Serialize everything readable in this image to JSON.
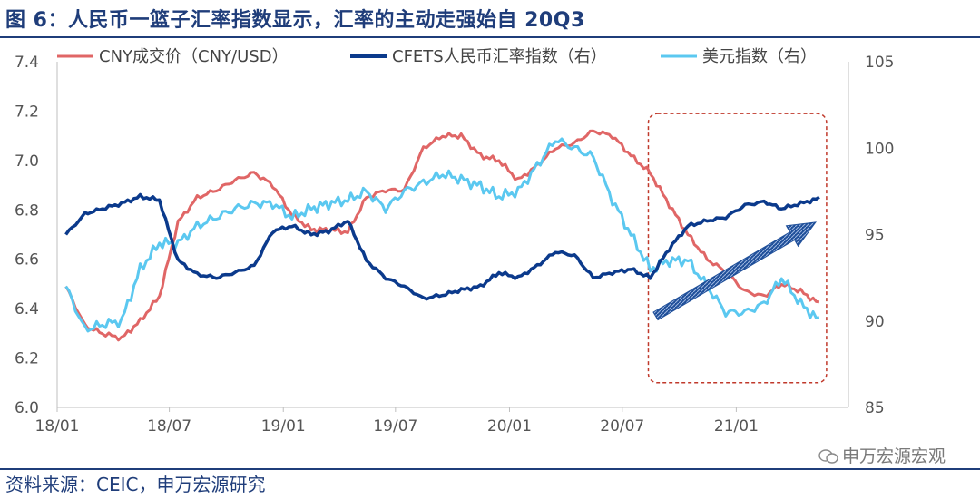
{
  "header": {
    "title": "图 6：人民币一篮子汇率指数显示，汇率的主动走强始自 20Q3"
  },
  "footer": {
    "source": "资料来源：CEIC，申万宏源研究",
    "watermark": "申万宏源宏观"
  },
  "chart_data": {
    "type": "line",
    "title": "",
    "x_tick_labels": [
      "18/01",
      "18/07",
      "19/01",
      "19/07",
      "20/01",
      "20/07",
      "21/01"
    ],
    "y_left": {
      "ticks": [
        "6.0",
        "6.2",
        "6.4",
        "6.6",
        "6.8",
        "7.0",
        "7.2",
        "7.4"
      ],
      "range": [
        6.0,
        7.4
      ]
    },
    "y_right": {
      "ticks": [
        "85",
        "90",
        "95",
        "100",
        "105"
      ],
      "range": [
        85,
        105
      ]
    },
    "grid": false,
    "legend_position": "top",
    "colors": {
      "cny": "#e06666",
      "cfets": "#0b3a8c",
      "usd_index": "#5bc8f0",
      "box": "#c0392b",
      "arrow": "#1f4f99"
    },
    "series": [
      {
        "name": "CNY成交价（CNY/USD）",
        "axis": "left",
        "x": [
          "2018-01",
          "2018-02",
          "2018-03",
          "2018-04",
          "2018-05",
          "2018-06",
          "2018-07",
          "2018-08",
          "2018-09",
          "2018-10",
          "2018-11",
          "2018-12",
          "2019-01",
          "2019-02",
          "2019-03",
          "2019-04",
          "2019-05",
          "2019-06",
          "2019-07",
          "2019-08",
          "2019-09",
          "2019-10",
          "2019-11",
          "2019-12",
          "2020-01",
          "2020-02",
          "2020-03",
          "2020-04",
          "2020-05",
          "2020-06",
          "2020-07",
          "2020-08",
          "2020-09",
          "2020-10",
          "2020-11",
          "2020-12",
          "2021-01",
          "2021-02",
          "2021-03",
          "2021-04",
          "2021-05"
        ],
        "values": [
          6.49,
          6.33,
          6.3,
          6.28,
          6.35,
          6.45,
          6.75,
          6.85,
          6.88,
          6.92,
          6.95,
          6.9,
          6.78,
          6.72,
          6.72,
          6.71,
          6.85,
          6.88,
          6.88,
          7.05,
          7.1,
          7.1,
          7.02,
          7.0,
          6.92,
          6.98,
          7.05,
          7.07,
          7.12,
          7.1,
          7.02,
          6.95,
          6.82,
          6.7,
          6.6,
          6.55,
          6.47,
          6.45,
          6.5,
          6.47,
          6.42
        ]
      },
      {
        "name": "CFETS人民币汇率指数（右）",
        "axis": "right",
        "x": [
          "2018-01",
          "2018-02",
          "2018-03",
          "2018-04",
          "2018-05",
          "2018-06",
          "2018-07",
          "2018-08",
          "2018-09",
          "2018-10",
          "2018-11",
          "2018-12",
          "2019-01",
          "2019-02",
          "2019-03",
          "2019-04",
          "2019-05",
          "2019-06",
          "2019-07",
          "2019-08",
          "2019-09",
          "2019-10",
          "2019-11",
          "2019-12",
          "2020-01",
          "2020-02",
          "2020-03",
          "2020-04",
          "2020-05",
          "2020-06",
          "2020-07",
          "2020-08",
          "2020-09",
          "2020-10",
          "2020-11",
          "2020-12",
          "2021-01",
          "2021-02",
          "2021-03",
          "2021-04",
          "2021-05"
        ],
        "values": [
          95.0,
          96.2,
          96.5,
          96.8,
          97.2,
          97.0,
          93.5,
          92.7,
          92.5,
          92.8,
          93.2,
          95.2,
          95.5,
          95.0,
          95.2,
          95.8,
          93.5,
          92.5,
          92.0,
          91.3,
          91.5,
          91.8,
          92.0,
          92.8,
          92.5,
          93.2,
          94.0,
          93.8,
          92.5,
          92.8,
          93.0,
          92.5,
          94.2,
          95.5,
          95.8,
          96.0,
          96.7,
          96.9,
          96.5,
          96.8,
          97.1
        ]
      },
      {
        "name": "美元指数（右）",
        "axis": "right",
        "x": [
          "2018-01",
          "2018-02",
          "2018-03",
          "2018-04",
          "2018-05",
          "2018-06",
          "2018-07",
          "2018-08",
          "2018-09",
          "2018-10",
          "2018-11",
          "2018-12",
          "2019-01",
          "2019-02",
          "2019-03",
          "2019-04",
          "2019-05",
          "2019-06",
          "2019-07",
          "2019-08",
          "2019-09",
          "2019-10",
          "2019-11",
          "2019-12",
          "2020-01",
          "2020-02",
          "2020-03",
          "2020-04",
          "2020-05",
          "2020-06",
          "2020-07",
          "2020-08",
          "2020-09",
          "2020-10",
          "2020-11",
          "2020-12",
          "2021-01",
          "2021-02",
          "2021-03",
          "2021-04",
          "2021-05"
        ],
        "values": [
          92.0,
          89.5,
          89.8,
          90.0,
          93.0,
          94.5,
          94.5,
          95.5,
          96.0,
          96.5,
          96.8,
          96.8,
          96.0,
          96.5,
          96.8,
          97.0,
          97.5,
          96.5,
          97.5,
          98.0,
          98.5,
          98.2,
          97.8,
          97.2,
          97.5,
          99.0,
          100.5,
          100.0,
          99.5,
          97.0,
          95.0,
          93.0,
          93.5,
          93.5,
          92.0,
          90.5,
          90.5,
          91.0,
          92.5,
          91.0,
          90.0
        ]
      }
    ],
    "annotations": {
      "highlight_box": {
        "from": "2020-08",
        "to": "2021-05"
      },
      "trend_arrow": true
    }
  }
}
